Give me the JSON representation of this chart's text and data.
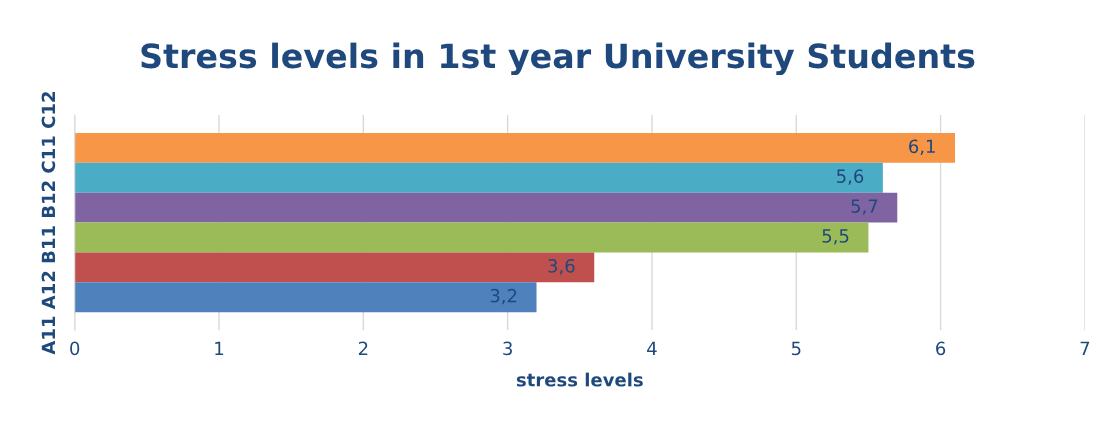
{
  "chart_data": {
    "type": "bar",
    "orientation": "horizontal",
    "title": "Stress levels in 1st year University Students",
    "xlabel": "stress levels",
    "ylabel": "A11 A12 B11 B12 C11 C12",
    "categories": [
      null,
      null,
      null,
      null,
      null,
      null
    ],
    "values": [
      6.1,
      5.6,
      5.7,
      5.5,
      3.6,
      3.2
    ],
    "colors": [
      "#f79646",
      "#4bacc6",
      "#8064a2",
      "#9bbb59",
      "#c0504d",
      "#4f81bd"
    ],
    "value_labels": [
      "6,1",
      "5,6",
      "5,7",
      "5,5",
      "3,6",
      "3,2"
    ],
    "xlim": [
      0,
      7
    ],
    "xticks": [
      0,
      1,
      2,
      3,
      4,
      5,
      6,
      7
    ],
    "grid": "x"
  }
}
